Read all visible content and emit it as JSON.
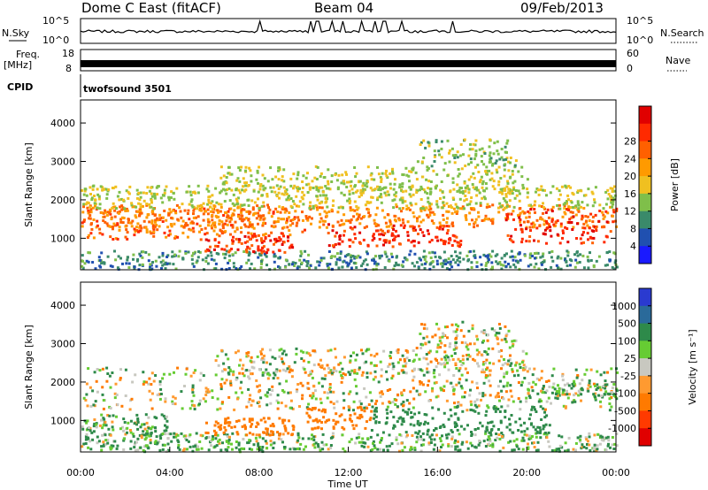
{
  "header": {
    "station": "Dome C East (fitACF)",
    "beam": "Beam 04",
    "date": "09/Feb/2013"
  },
  "top_panels": {
    "nsky_label": "N.Sky",
    "nsky_ticks": [
      "10^5",
      "10^0"
    ],
    "nsearch_label": "N.Search",
    "nsearch_ticks": [
      "10^5",
      "10^0"
    ],
    "freq_label": "Freq.",
    "freq_unit": "[MHz]",
    "freq_ticks": [
      "18",
      "8"
    ],
    "nave_label": "Nave",
    "nave_ticks": [
      "60",
      "0"
    ],
    "cpid_label": "CPID",
    "cpid_value": "twofsound 3501"
  },
  "colors": {
    "power_scale": [
      "#1a1aff",
      "#2050b0",
      "#3a8a6a",
      "#7fbf4a",
      "#f0c020",
      "#ff9a00",
      "#ff6000",
      "#ff2a00",
      "#e00000"
    ],
    "velocity_scale": [
      "#2a3ad0",
      "#2a6a9a",
      "#2e8a4a",
      "#66cc33",
      "#c8c8c0",
      "#ff9a30",
      "#ff7a00",
      "#ff3a00",
      "#e00000"
    ]
  },
  "chart_data": [
    {
      "type": "heatmap",
      "title": "Power",
      "ylabel": "Slant Range [km]",
      "ylim": [
        180,
        4600
      ],
      "yticks": [
        "1000",
        "2000",
        "3000",
        "4000"
      ],
      "colorbar_label": "Power [dB]",
      "colorbar_ticks": [
        "4",
        "8",
        "12",
        "16",
        "20",
        "24",
        "28"
      ],
      "colorbar_range": [
        0,
        32
      ],
      "bands": [
        {
          "t0": 0,
          "t1": 24,
          "r0": 220,
          "r1": 700,
          "level": 8
        },
        {
          "t0": 0,
          "t1": 10,
          "r0": 1000,
          "r1": 1800,
          "level": 24
        },
        {
          "t0": 0,
          "t1": 24,
          "r0": 1300,
          "r1": 1900,
          "level": 22
        },
        {
          "t0": 5.5,
          "t1": 9.5,
          "r0": 650,
          "r1": 1100,
          "level": 28
        },
        {
          "t0": 11,
          "t1": 17,
          "r0": 800,
          "r1": 1400,
          "level": 28
        },
        {
          "t0": 0,
          "t1": 24,
          "r0": 1800,
          "r1": 2400,
          "level": 14
        },
        {
          "t0": 6,
          "t1": 20,
          "r0": 2200,
          "r1": 2900,
          "level": 14
        },
        {
          "t0": 15,
          "t1": 19.5,
          "r0": 2900,
          "r1": 3600,
          "level": 12
        },
        {
          "t0": 19,
          "t1": 24,
          "r0": 900,
          "r1": 1800,
          "level": 28
        }
      ]
    },
    {
      "type": "heatmap",
      "title": "Velocity",
      "ylabel": "Slant Range [km]",
      "ylim": [
        180,
        4600
      ],
      "yticks": [
        "1000",
        "2000",
        "3000",
        "4000"
      ],
      "xlabel": "Time UT",
      "xticks": [
        "00:00",
        "04:00",
        "08:00",
        "12:00",
        "16:00",
        "20:00",
        "00:00"
      ],
      "xlim": [
        0,
        24
      ],
      "colorbar_label": "Velocity [m s⁻¹]",
      "colorbar_ticks": [
        "1000",
        "500",
        "100",
        "25",
        "-25",
        "-100",
        "-500",
        "-1000"
      ],
      "bands": [
        {
          "t0": 0,
          "t1": 24,
          "r0": 220,
          "r1": 700,
          "v": 100
        },
        {
          "t0": 0,
          "t1": 24,
          "r0": 1300,
          "r1": 2400,
          "v": 0
        },
        {
          "t0": 5.5,
          "t1": 9.5,
          "r0": 650,
          "r1": 1100,
          "v": -300
        },
        {
          "t0": 10,
          "t1": 13,
          "r0": 800,
          "r1": 1400,
          "v": -300
        },
        {
          "t0": 13,
          "t1": 21,
          "r0": 700,
          "r1": 1400,
          "v": 300
        },
        {
          "t0": 6,
          "t1": 20,
          "r0": 2200,
          "r1": 2900,
          "v": 0
        },
        {
          "t0": 15,
          "t1": 19.5,
          "r0": 2900,
          "r1": 3600,
          "v": 0
        },
        {
          "t0": 20,
          "t1": 24,
          "r0": 1600,
          "r1": 2000,
          "v": 100
        },
        {
          "t0": 0,
          "t1": 4,
          "r0": 700,
          "r1": 1200,
          "v": 100
        }
      ]
    }
  ]
}
